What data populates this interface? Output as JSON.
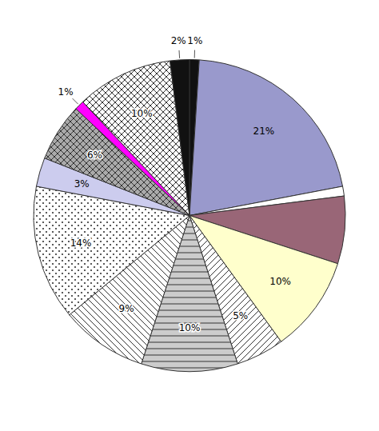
{
  "chart_data": {
    "type": "pie",
    "values": [
      1,
      21,
      1,
      7,
      10,
      5,
      10,
      9,
      14,
      3,
      6,
      1,
      10,
      2
    ],
    "value_labels": [
      "1%",
      "21%",
      null,
      null,
      "10%",
      "5%",
      "10%",
      "9%",
      "14%",
      "3%",
      "6%",
      "1%",
      "10%",
      "2%"
    ],
    "colors": [
      "#111111",
      "#9999cc",
      "#ffffff",
      "#996677",
      "#ffffcc",
      "#ffffff",
      "#cccccc",
      "#ffffff",
      "#ffffff",
      "#ccccee",
      "#aaaaaa",
      "#ff00ff",
      "#ffffff",
      "#111111"
    ],
    "data_labels": true
  }
}
